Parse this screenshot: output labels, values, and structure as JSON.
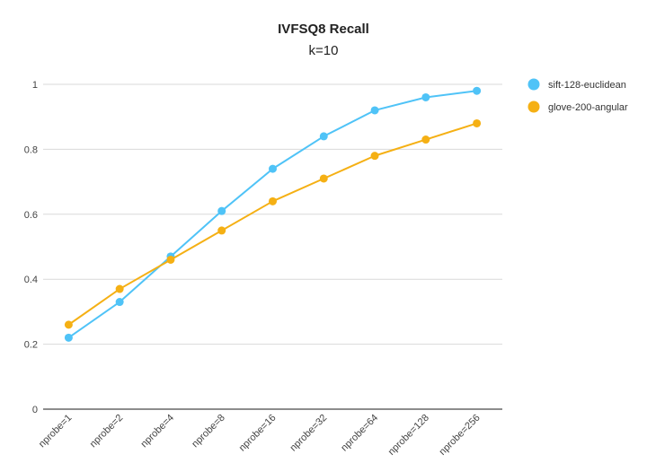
{
  "chart_data": {
    "type": "line",
    "title": "IVFSQ8 Recall",
    "subtitle": "k=10",
    "xlabel": "",
    "ylabel": "",
    "categories": [
      "nprobe=1",
      "nprobe=2",
      "nprobe=4",
      "nprobe=8",
      "nprobe=16",
      "nprobe=32",
      "nprobe=64",
      "nprobe=128",
      "nprobe=256"
    ],
    "series": [
      {
        "name": "sift-128-euclidean",
        "color": "#4FC3F7",
        "values": [
          0.22,
          0.33,
          0.47,
          0.61,
          0.74,
          0.84,
          0.92,
          0.96,
          0.98
        ]
      },
      {
        "name": "glove-200-angular",
        "color": "#F5B014",
        "values": [
          0.26,
          0.37,
          0.46,
          0.55,
          0.64,
          0.71,
          0.78,
          0.83,
          0.88
        ]
      }
    ],
    "ylim": [
      0,
      1
    ],
    "yticks": [
      "0",
      "0.2",
      "0.4",
      "0.6",
      "0.8",
      "1"
    ],
    "grid": true,
    "legend_position": "right"
  }
}
